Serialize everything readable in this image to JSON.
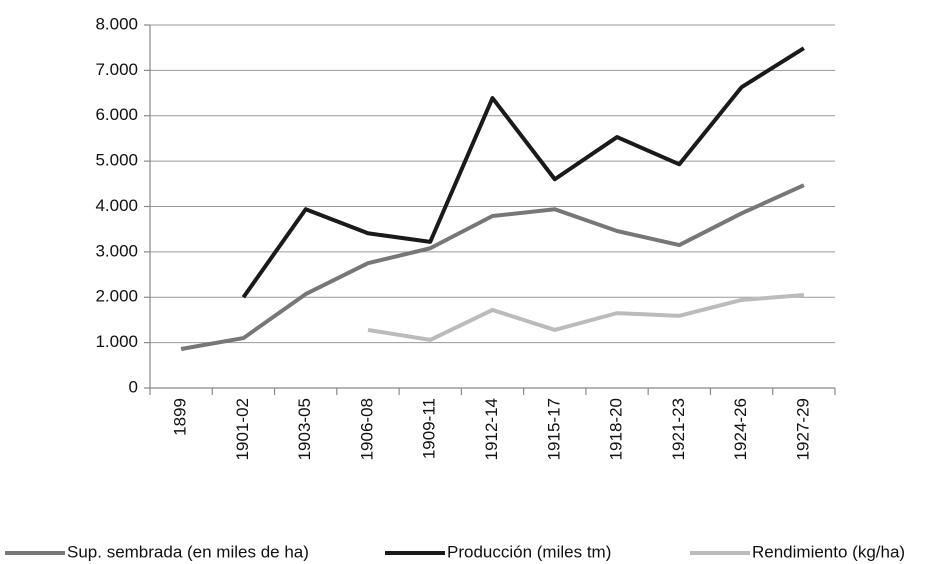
{
  "chart_data": {
    "type": "line",
    "categories": [
      "1899",
      "1901-02",
      "1903-05",
      "1906-08",
      "1909-11",
      "1912-14",
      "1915-17",
      "1918-20",
      "1921-23",
      "1924-26",
      "1927-29"
    ],
    "series": [
      {
        "name": "Sup. sembrada (en miles de ha)",
        "color": "#777777",
        "values": [
          860,
          1100,
          2070,
          2750,
          3080,
          3790,
          3940,
          3460,
          3150,
          3850,
          4470
        ]
      },
      {
        "name": "Producción (miles tm)",
        "color": "#1a1a1a",
        "values": [
          null,
          2000,
          3940,
          3410,
          3220,
          6390,
          4600,
          5530,
          4930,
          6630,
          7490
        ]
      },
      {
        "name": "Rendimiento (kg/ha)",
        "color": "#bbbbbb",
        "values": [
          null,
          null,
          null,
          1280,
          1060,
          1720,
          1280,
          1650,
          1590,
          1940,
          2050
        ]
      }
    ],
    "ylim": [
      0,
      8000
    ],
    "yticks": [
      0,
      {
        "value": 1000,
        "label": "1.000"
      },
      {
        "value": 2000,
        "label": "2.000"
      },
      {
        "value": 3000,
        "label": "3.000"
      },
      {
        "value": 4000,
        "label": "4.000"
      },
      {
        "value": 5000,
        "label": "5.000"
      },
      {
        "value": 6000,
        "label": "6.000"
      },
      {
        "value": 7000,
        "label": "7.000"
      },
      {
        "value": 8000,
        "label": "8.000"
      }
    ],
    "grid": true,
    "legend": "bottom"
  }
}
